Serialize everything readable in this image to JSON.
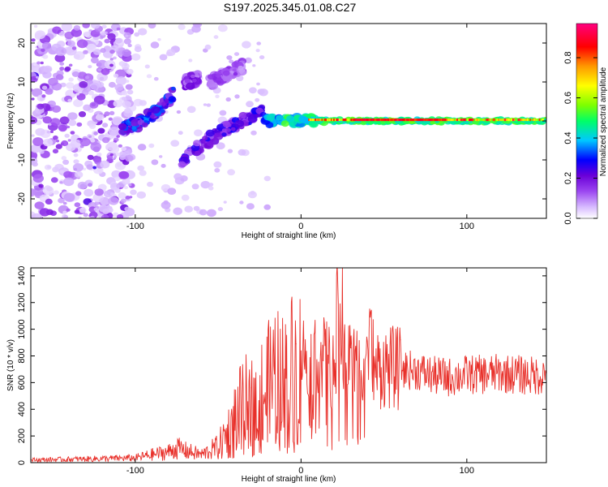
{
  "title": "S197.2025.345.01.08.C27",
  "chart_data": [
    {
      "type": "heatmap",
      "xlabel": "Height of straight line (km)",
      "ylabel": "Frequency (Hz)",
      "xlim": [
        -163,
        148
      ],
      "ylim": [
        -25,
        25
      ],
      "xticks": [
        -100,
        0,
        100
      ],
      "yticks": [
        -20,
        -10,
        0,
        10,
        20
      ],
      "colorbar": {
        "label": "Normalized spectral amplitude",
        "range": [
          0,
          0.97
        ],
        "ticks": [
          0.0,
          0.2,
          0.4,
          0.6,
          0.8
        ],
        "colors": [
          "#ffffff",
          "#d6b8ff",
          "#9b45f0",
          "#6a00d8",
          "#0000ff",
          "#00c8ff",
          "#00ff66",
          "#7cff00",
          "#ffff00",
          "#ff9900",
          "#ff0000",
          "#ff007f"
        ]
      },
      "features": [
        {
          "name": "noise region",
          "x_range": [
            -163,
            -110
          ],
          "freq_range": [
            -25,
            25
          ],
          "amplitude": 0.1
        },
        {
          "name": "rising branch",
          "x": [
            -108,
            -95,
            -85,
            -77
          ],
          "freq": [
            -2,
            0,
            3,
            7
          ],
          "amplitude": 0.25
        },
        {
          "name": "upper branch",
          "x": [
            -70,
            -62
          ],
          "freq": [
            10,
            11
          ],
          "amplitude": 0.15
        },
        {
          "name": "rising branch 2",
          "x": [
            -72,
            -60,
            -45,
            -30,
            -22
          ],
          "freq": [
            -10,
            -6,
            -2,
            1,
            3
          ],
          "amplitude": 0.2
        },
        {
          "name": "upper branch 2",
          "x": [
            -55,
            -45,
            -35
          ],
          "freq": [
            10,
            12,
            14
          ],
          "amplitude": 0.12
        },
        {
          "name": "steady line",
          "x": [
            -22,
            148
          ],
          "freq": [
            0,
            0
          ],
          "amplitude": 0.95
        }
      ]
    },
    {
      "type": "line",
      "xlabel": "Height of straight line (km)",
      "ylabel": "SNR (10 * v/v)",
      "xlim": [
        -163,
        148
      ],
      "ylim": [
        0,
        1460
      ],
      "xticks": [
        -100,
        0,
        100
      ],
      "yticks": [
        0,
        200,
        400,
        600,
        800,
        1000,
        1200,
        1400
      ],
      "color": "#e8302a",
      "series": [
        {
          "name": "SNR",
          "x": [
            -163,
            -140,
            -120,
            -100,
            -90,
            -80,
            -75,
            -70,
            -60,
            -50,
            -45,
            -40,
            -35,
            -30,
            -25,
            -20,
            -15,
            -10,
            -5,
            0,
            5,
            10,
            15,
            20,
            22,
            25,
            30,
            35,
            42,
            45,
            50,
            60,
            70,
            80,
            90,
            100,
            110,
            120,
            130,
            140,
            148
          ],
          "y": [
            20,
            25,
            30,
            35,
            60,
            80,
            110,
            90,
            60,
            120,
            200,
            330,
            420,
            440,
            480,
            560,
            620,
            600,
            700,
            820,
            800,
            830,
            760,
            680,
            1250,
            820,
            780,
            720,
            900,
            700,
            720,
            700,
            690,
            650,
            640,
            660,
            660,
            670,
            660,
            650,
            660
          ]
        },
        {
          "name": "peaks",
          "x": [
            -30,
            -10,
            -3,
            6,
            12,
            21,
            25,
            30,
            42,
            45,
            60
          ],
          "y": [
            560,
            700,
            890,
            960,
            900,
            520,
            1460,
            860,
            1130,
            640,
            920
          ]
        }
      ]
    }
  ]
}
